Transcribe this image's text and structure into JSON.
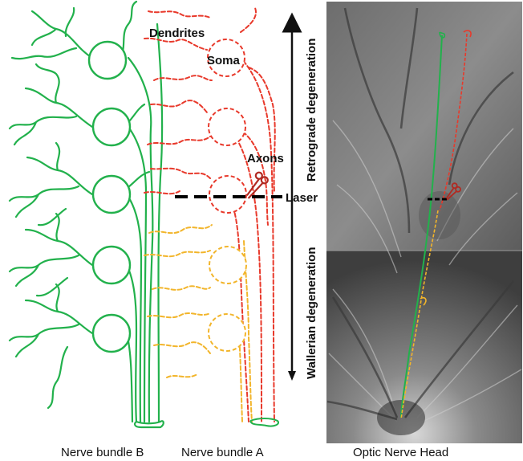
{
  "labels": {
    "dendrites": "Dendrites",
    "soma": "Soma",
    "axons": "Axons",
    "laser": "Laser",
    "retrograde": "Retrograde degeneration",
    "wallerian": "Wallerian degeneration",
    "bundle_b": "Nerve bundle B",
    "bundle_a": "Nerve bundle A",
    "optic": "Optic Nerve Head"
  },
  "colors": {
    "intact": "#22b14c",
    "retrograde": "#e8392b",
    "wallerian": "#f2b52b",
    "laser_line": "#000000"
  },
  "icons": {
    "cut": "scissors-icon"
  }
}
